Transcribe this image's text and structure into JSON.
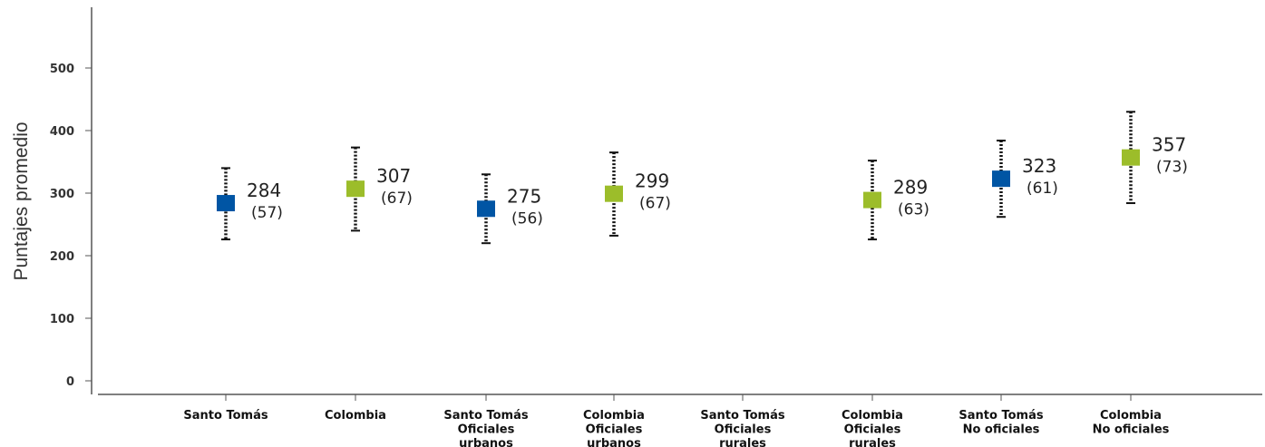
{
  "chart_data": {
    "type": "scatter",
    "ylabel": "Puntajes promedio",
    "yticks": [
      0,
      100,
      200,
      300,
      400,
      500
    ],
    "ylim": [
      0,
      500
    ],
    "grid": false,
    "colors": {
      "santo_tomas": "#0055a4",
      "colombia": "#9cbd2a"
    },
    "categories": [
      [
        "Santo Tomás"
      ],
      [
        "Colombia"
      ],
      [
        "Santo Tomás",
        "Oficiales",
        "urbanos"
      ],
      [
        "Colombia",
        "Oficiales",
        "urbanos"
      ],
      [
        "Santo Tomás",
        "Oficiales",
        "rurales"
      ],
      [
        "Colombia",
        "Oficiales",
        "rurales"
      ],
      [
        "Santo Tomás",
        "No oficiales"
      ],
      [
        "Colombia",
        "No oficiales"
      ]
    ],
    "points": [
      {
        "cat": 0,
        "group": "santo_tomas",
        "value": 284,
        "sd": 57,
        "low": 226,
        "high": 340,
        "label": "284",
        "sd_label": "(57)"
      },
      {
        "cat": 1,
        "group": "colombia",
        "value": 307,
        "sd": 67,
        "low": 240,
        "high": 373,
        "label": "307",
        "sd_label": "(67)"
      },
      {
        "cat": 2,
        "group": "santo_tomas",
        "value": 275,
        "sd": 56,
        "low": 220,
        "high": 330,
        "label": "275",
        "sd_label": "(56)"
      },
      {
        "cat": 3,
        "group": "colombia",
        "value": 299,
        "sd": 67,
        "low": 232,
        "high": 365,
        "label": "299",
        "sd_label": "(67)"
      },
      {
        "cat": 5,
        "group": "colombia",
        "value": 289,
        "sd": 63,
        "low": 226,
        "high": 352,
        "label": "289",
        "sd_label": "(63)"
      },
      {
        "cat": 6,
        "group": "santo_tomas",
        "value": 323,
        "sd": 61,
        "low": 262,
        "high": 384,
        "label": "323",
        "sd_label": "(61)"
      },
      {
        "cat": 7,
        "group": "colombia",
        "value": 357,
        "sd": 73,
        "low": 284,
        "high": 430,
        "label": "357",
        "sd_label": "(73)"
      }
    ]
  }
}
